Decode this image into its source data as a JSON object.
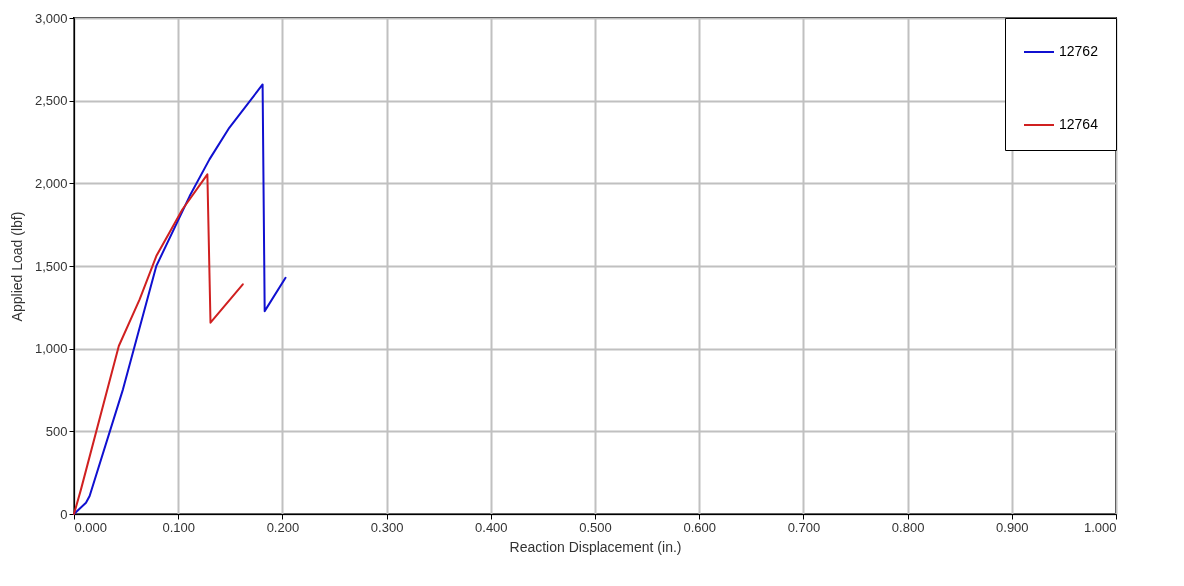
{
  "chart_data": {
    "type": "line",
    "xlabel": "Reaction Displacement (in.)",
    "ylabel": "Applied Load (lbf)",
    "series": [
      {
        "name": "12762",
        "color": "#1010d0",
        "x": [
          0,
          0.0115,
          0.015,
          0.047,
          0.079,
          0.111,
          0.13,
          0.149,
          0.181,
          0.183,
          0.203
        ],
        "values": [
          0,
          68,
          109,
          754,
          1500,
          1923,
          2145,
          2336,
          2598,
          1227,
          1429
        ]
      },
      {
        "name": "12764",
        "color": "#d02020",
        "x": [
          0,
          0.0067,
          0.043,
          0.063,
          0.079,
          0.104,
          0.128,
          0.131,
          0.162
        ],
        "values": [
          0,
          149,
          1016,
          1298,
          1560,
          1842,
          2054,
          1157,
          1389
        ]
      }
    ],
    "xlim": [
      0,
      1
    ],
    "ylim": [
      0,
      3000
    ],
    "xticks": [
      {
        "value": 0,
        "label": "0.000"
      },
      {
        "value": 0.1,
        "label": "0.100"
      },
      {
        "value": 0.2,
        "label": "0.200"
      },
      {
        "value": 0.3,
        "label": "0.300"
      },
      {
        "value": 0.4,
        "label": "0.400"
      },
      {
        "value": 0.5,
        "label": "0.500"
      },
      {
        "value": 0.6,
        "label": "0.600"
      },
      {
        "value": 0.7,
        "label": "0.700"
      },
      {
        "value": 0.8,
        "label": "0.800"
      },
      {
        "value": 0.9,
        "label": "0.900"
      },
      {
        "value": 1,
        "label": "1.000"
      }
    ],
    "yticks": [
      0,
      500,
      {
        "value": 1000,
        "label": "1,000"
      },
      {
        "value": 1500,
        "label": "1,500"
      },
      {
        "value": 2000,
        "label": "2,000"
      },
      {
        "value": 2500,
        "label": "2,500"
      },
      {
        "value": 3000,
        "label": "3,000"
      }
    ],
    "grid": true,
    "legend": "top right",
    "marker": "none",
    "line_style": "solid"
  }
}
